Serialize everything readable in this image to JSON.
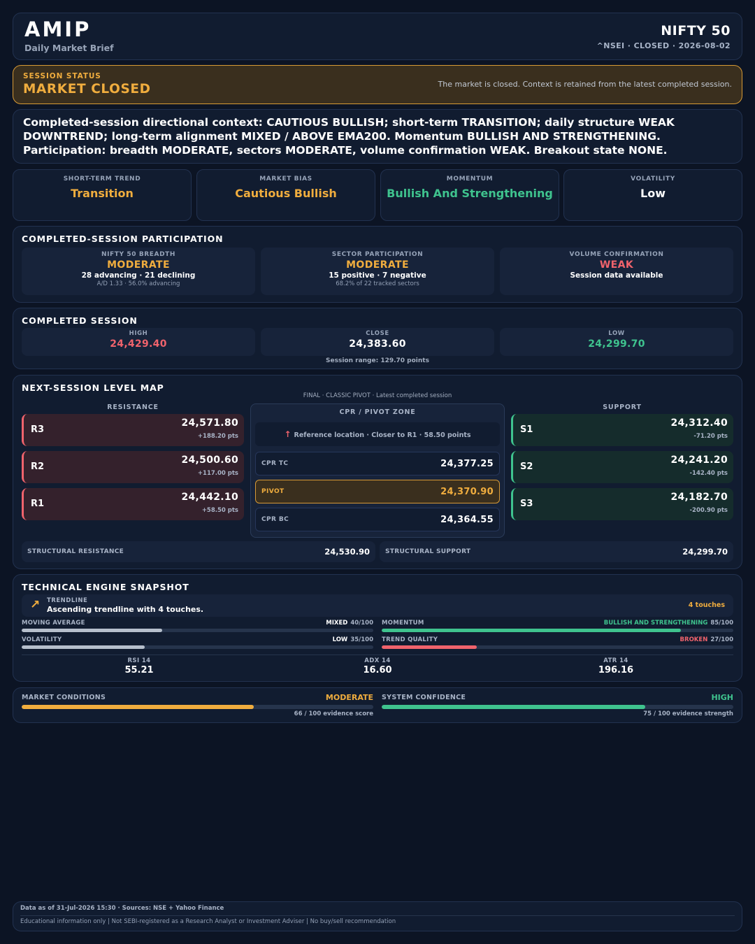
{
  "header": {
    "brand": "AMIP",
    "subtitle": "Daily Market Brief",
    "index_name": "NIFTY 50",
    "index_meta": "^NSEI · CLOSED · 2026-08-02"
  },
  "session_status": {
    "label": "SESSION STATUS",
    "value": "MARKET CLOSED",
    "note": "The market is closed. Context is retained from the latest completed session."
  },
  "context": {
    "text": "Completed-session directional context: CAUTIOUS BULLISH; short-term TRANSITION; daily structure WEAK DOWNTREND; long-term alignment MIXED / ABOVE EMA200. Momentum BULLISH AND STRENGTHENING. Participation: breadth MODERATE, sectors MODERATE, volume confirmation WEAK. Breakout state NONE."
  },
  "metrics": [
    {
      "label": "SHORT-TERM TREND",
      "value": "Transition",
      "color": "#f0ad3e"
    },
    {
      "label": "MARKET BIAS",
      "value": "Cautious Bullish",
      "color": "#f0ad3e"
    },
    {
      "label": "MOMENTUM",
      "value": "Bullish And Strengthening",
      "color": "#3fc38e"
    },
    {
      "label": "VOLATILITY",
      "value": "Low",
      "color": "#ffffff"
    }
  ],
  "participation": {
    "title": "COMPLETED-SESSION PARTICIPATION",
    "breadth": {
      "label": "NIFTY 50 BREADTH",
      "value": "MODERATE",
      "detail": "28 advancing · 21 declining",
      "sub": "A/D 1.33 · 56.0% advancing"
    },
    "sector": {
      "label": "SECTOR PARTICIPATION",
      "value": "MODERATE",
      "detail": "15 positive · 7 negative",
      "sub": "68.2% of 22 tracked sectors"
    },
    "volume": {
      "label": "VOLUME CONFIRMATION",
      "value": "WEAK",
      "detail": "Session data available"
    }
  },
  "session": {
    "title": "COMPLETED SESSION",
    "high_label": "HIGH",
    "high": "24,429.40",
    "close_label": "CLOSE",
    "close": "24,383.60",
    "low_label": "LOW",
    "low": "24,299.70",
    "range": "Session range: 129.70 points"
  },
  "level_map": {
    "title": "NEXT-SESSION LEVEL MAP",
    "note": "FINAL · CLASSIC PIVOT · Latest completed session",
    "resistance_head": "RESISTANCE",
    "support_head": "SUPPORT",
    "resistance": [
      {
        "name": "R3",
        "value": "24,571.80",
        "dist": "+188.20 pts"
      },
      {
        "name": "R2",
        "value": "24,500.60",
        "dist": "+117.00 pts"
      },
      {
        "name": "R1",
        "value": "24,442.10",
        "dist": "+58.50 pts"
      }
    ],
    "support": [
      {
        "name": "S1",
        "value": "24,312.40",
        "dist": "-71.20 pts"
      },
      {
        "name": "S2",
        "value": "24,241.20",
        "dist": "-142.40 pts"
      },
      {
        "name": "S3",
        "value": "24,182.70",
        "dist": "-200.90 pts"
      }
    ],
    "cpr": {
      "head": "CPR / PIVOT ZONE",
      "ref_arrow": "↑",
      "reference": "Reference location · Closer to R1 · 58.50 points",
      "tc_label": "CPR TC",
      "tc": "24,377.25",
      "pivot_label": "PIVOT",
      "pivot": "24,370.90",
      "bc_label": "CPR BC",
      "bc": "24,364.55"
    },
    "structural_resistance_label": "STRUCTURAL RESISTANCE",
    "structural_resistance": "24,530.90",
    "structural_support_label": "STRUCTURAL SUPPORT",
    "structural_support": "24,299.70"
  },
  "tech": {
    "title": "TECHNICAL ENGINE SNAPSHOT",
    "trendline_icon": "trend-up-icon",
    "trendline_arrow": "↗",
    "trendline_label": "TRENDLINE",
    "trendline_desc": "Ascending trendline with 4 touches.",
    "trendline_touches": "4 touches",
    "meters": [
      {
        "label": "MOVING AVERAGE",
        "state": "MIXED",
        "score": "40/100",
        "value": 40,
        "color": "#b6bfcc",
        "state_color": "#ffffff"
      },
      {
        "label": "MOMENTUM",
        "state": "BULLISH AND STRENGTHENING",
        "score": "85/100",
        "value": 85,
        "color": "#3fc38e",
        "state_color": "#3fc38e"
      },
      {
        "label": "VOLATILITY",
        "state": "LOW",
        "score": "35/100",
        "value": 35,
        "color": "#b6bfcc",
        "state_color": "#ffffff"
      },
      {
        "label": "TREND QUALITY",
        "state": "BROKEN",
        "score": "27/100",
        "value": 27,
        "color": "#f0636c",
        "state_color": "#f0636c"
      }
    ],
    "indicators": [
      {
        "label": "RSI 14",
        "value": "55.21"
      },
      {
        "label": "ADX 14",
        "value": "16.60"
      },
      {
        "label": "ATR 14",
        "value": "196.16"
      }
    ]
  },
  "conditions": {
    "market": {
      "label": "MARKET CONDITIONS",
      "state": "MODERATE",
      "value": 66,
      "footer": "66 / 100 evidence score",
      "color": "#f0ad3e"
    },
    "system": {
      "label": "SYSTEM CONFIDENCE",
      "state": "HIGH",
      "value": 75,
      "footer": "75 / 100 evidence strength",
      "color": "#3fc38e"
    }
  },
  "footer": {
    "line1": "Data as of 31-Jul-2026 15:30 · Sources: NSE + Yahoo Finance",
    "line2": "Educational information only | Not SEBI-registered as a Research Analyst or Investment Adviser | No buy/sell recommendation"
  }
}
